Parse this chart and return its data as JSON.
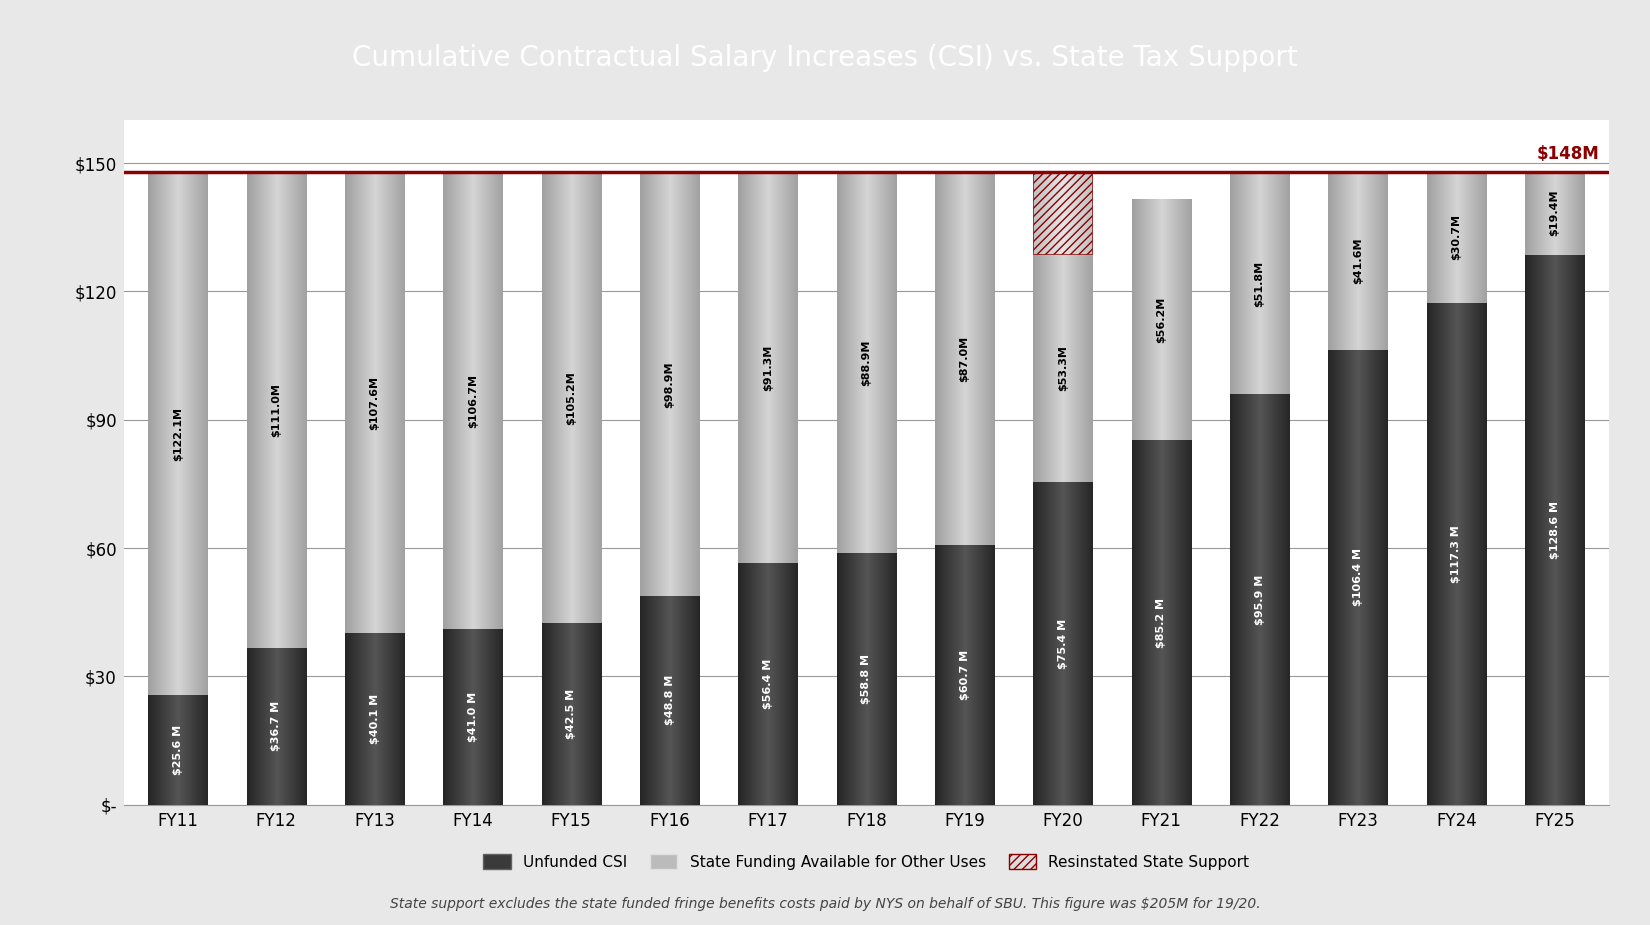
{
  "title": "Cumulative Contractual Salary Increases (CSI) vs. State Tax Support",
  "title_bg_color": "#7B0000",
  "title_text_color": "#FFFFFF",
  "footnote": "State support excludes the state funded fringe benefits costs paid by NYS on behalf of SBU. This figure was $205M for 19/20.",
  "reference_line_value": 148,
  "reference_line_label": "$148M",
  "reference_line_color": "#8B0000",
  "categories": [
    "FY11",
    "FY12",
    "FY13",
    "FY14",
    "FY15",
    "FY16",
    "FY17",
    "FY18",
    "FY19",
    "FY20",
    "FY21",
    "FY22",
    "FY23",
    "FY24",
    "FY25"
  ],
  "unfunded_csi": [
    25.6,
    36.7,
    40.1,
    41.0,
    42.5,
    48.8,
    56.4,
    58.8,
    60.7,
    75.4,
    85.2,
    95.9,
    106.4,
    117.3,
    128.6
  ],
  "state_funding": [
    122.1,
    111.0,
    107.6,
    106.7,
    105.2,
    98.9,
    91.3,
    88.9,
    87.0,
    53.3,
    56.2,
    51.8,
    41.6,
    30.7,
    19.4
  ],
  "reinstated": [
    0,
    0,
    0,
    0,
    0,
    0,
    0,
    0,
    0,
    19.3,
    0,
    0,
    0,
    0,
    0
  ],
  "unfunded_csi_labels": [
    "$25.6 M",
    "$36.7 M",
    "$40.1 M",
    "$41.0 M",
    "$42.5 M",
    "$48.8 M",
    "$56.4 M",
    "$58.8 M",
    "$60.7 M",
    "$75.4 M",
    "$85.2 M",
    "$95.9 M",
    "$106.4 M",
    "$117.3 M",
    "$128.6 M"
  ],
  "state_funding_labels": [
    "$122.1M",
    "$111.0M",
    "$107.6M",
    "$106.7M",
    "$105.2M",
    "$98.9M",
    "$91.3M",
    "$88.9M",
    "$87.0M",
    "$53.3M",
    "$56.2M",
    "$51.8M",
    "$41.6M",
    "$30.7M",
    "$19.4M"
  ],
  "bar_color_dark": "#3A3A3A",
  "bar_color_dark_edge": "#606060",
  "bar_color_light": "#BBBBBB",
  "bar_color_light_edge": "#E0E0E0",
  "bar_color_hatch_fill": "#DDDDDD",
  "hatch_color": "#8B0000",
  "bg_color": "#E8E8E8",
  "plot_bg_color": "#FFFFFF",
  "ylim": [
    0,
    160
  ],
  "yticks": [
    0,
    30,
    60,
    90,
    120,
    150
  ],
  "ytick_labels": [
    "$-",
    "$30",
    "$60",
    "$90",
    "$120",
    "$150"
  ],
  "legend_labels": [
    "Unfunded CSI",
    "State Funding Available for Other Uses",
    "Resinstated State Support"
  ],
  "figsize": [
    16.5,
    9.25
  ],
  "dpi": 100
}
